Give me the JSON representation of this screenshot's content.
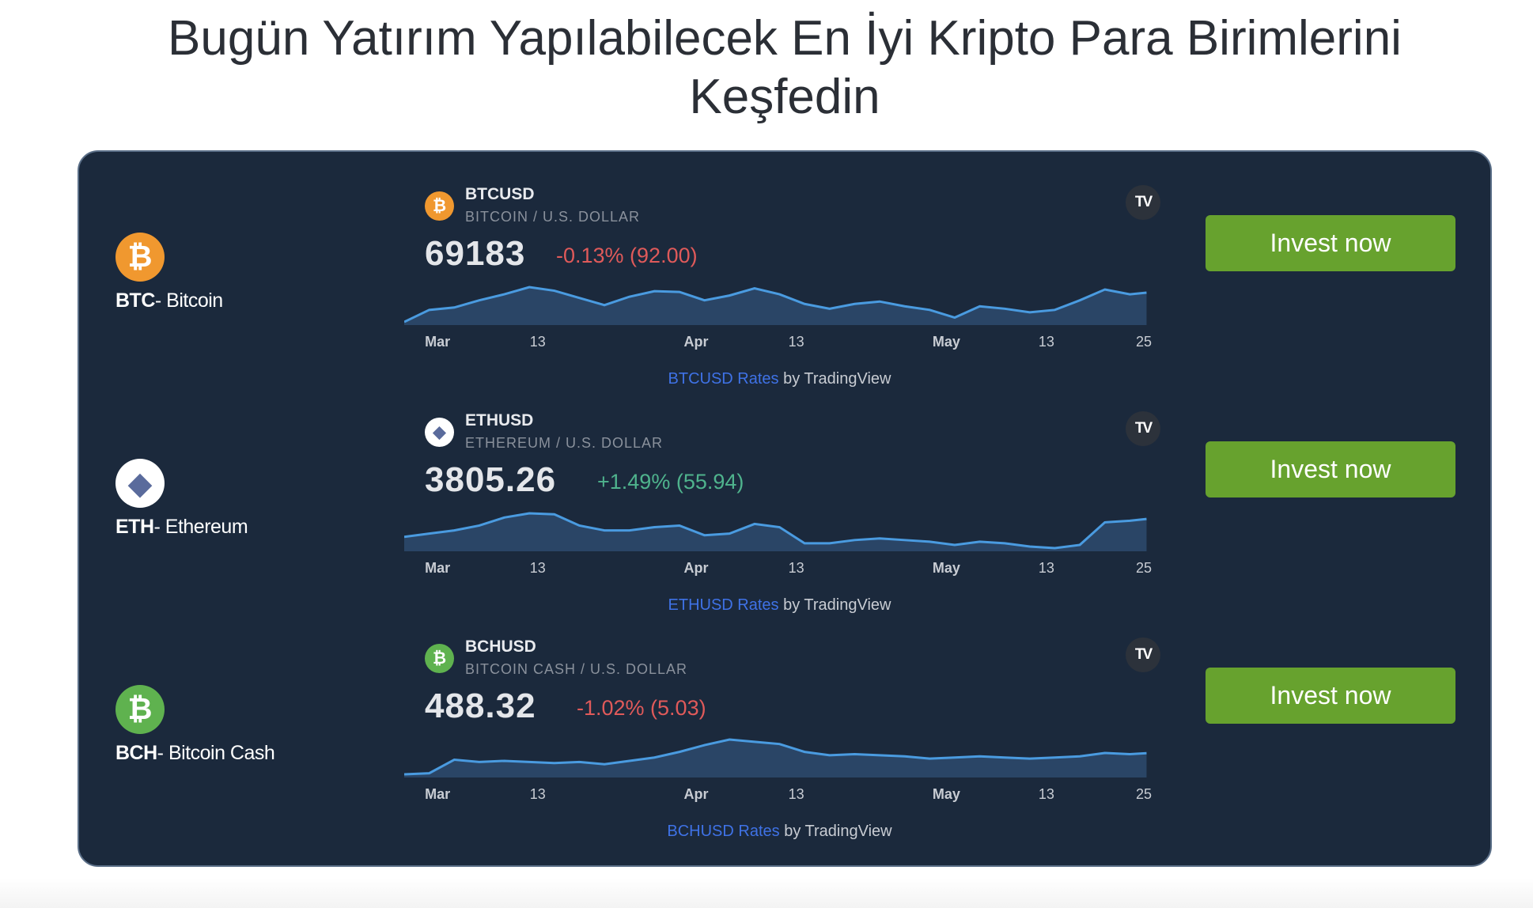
{
  "page": {
    "title_line1": "Bugün Yatırım Yapılabilecek En İyi Kripto Para Birimlerini",
    "title_line2": "Keşfedin"
  },
  "colors": {
    "panel_bg": "#1b293c",
    "button": "#67a22e",
    "negative": "#e05a5a",
    "positive": "#4fb38d",
    "line": "#4a9be0",
    "link": "#3f72e6"
  },
  "coins": [
    {
      "icon": "bitcoin-icon",
      "icon_color": "#f0982f",
      "glyph": "₿",
      "ticker": "BTC",
      "name": "- Bitcoin",
      "symbol": "BTCUSD",
      "description": "BITCOIN / U.S. DOLLAR",
      "price": "69183",
      "change": "-0.13% (92.00)",
      "direction": "down",
      "attr_link": "BTCUSD Rates",
      "attr_by": " by TradingView",
      "button": "Invest now"
    },
    {
      "icon": "ethereum-icon",
      "icon_color": "#ffffff",
      "glyph": "◆",
      "ticker": "ETH",
      "name": "- Ethereum",
      "symbol": "ETHUSD",
      "description": "ETHEREUM / U.S. DOLLAR",
      "price": "3805.26",
      "change": "+1.49% (55.94)",
      "direction": "up",
      "attr_link": "ETHUSD Rates",
      "attr_by": " by TradingView",
      "button": "Invest now"
    },
    {
      "icon": "bitcoin-cash-icon",
      "icon_color": "#5fb24f",
      "glyph": "₿",
      "ticker": "BCH",
      "name": "- Bitcoin Cash",
      "symbol": "BCHUSD",
      "description": "BITCOIN CASH / U.S. DOLLAR",
      "price": "488.32",
      "change": "-1.02% (5.03)",
      "direction": "down",
      "attr_link": "BCHUSD Rates",
      "attr_by": " by TradingView",
      "button": "Invest now"
    }
  ],
  "tradingview_logo": "TV",
  "chart_data": [
    {
      "type": "area",
      "series_of": "BTCUSD",
      "xlim": [
        "02-26",
        "05-26"
      ],
      "ticks": [
        {
          "label": "Mar",
          "date": "03-01",
          "month": true
        },
        {
          "label": "13",
          "date": "03-13"
        },
        {
          "label": "Apr",
          "date": "04-01",
          "month": true
        },
        {
          "label": "13",
          "date": "04-13"
        },
        {
          "label": "May",
          "date": "05-01",
          "month": true
        },
        {
          "label": "13",
          "date": "05-13"
        },
        {
          "label": "25",
          "date": "05-25"
        }
      ],
      "x": [
        "02-26",
        "02-29",
        "03-03",
        "03-06",
        "03-09",
        "03-12",
        "03-15",
        "03-18",
        "03-21",
        "03-24",
        "03-27",
        "03-30",
        "04-02",
        "04-05",
        "04-08",
        "04-11",
        "04-14",
        "04-17",
        "04-20",
        "04-23",
        "04-26",
        "04-29",
        "05-02",
        "05-05",
        "05-08",
        "05-11",
        "05-14",
        "05-17",
        "05-20",
        "05-23",
        "05-25"
      ],
      "values": [
        57000,
        62000,
        63000,
        66000,
        68500,
        71500,
        70000,
        67000,
        64000,
        67500,
        69800,
        69500,
        66000,
        68000,
        71000,
        68500,
        64500,
        62500,
        64500,
        65500,
        63500,
        62000,
        58800,
        63500,
        62500,
        61000,
        62000,
        66000,
        70500,
        68500,
        69183
      ]
    },
    {
      "type": "area",
      "series_of": "ETHUSD",
      "xlim": [
        "02-26",
        "05-26"
      ],
      "ticks": [
        {
          "label": "Mar",
          "date": "03-01",
          "month": true
        },
        {
          "label": "13",
          "date": "03-13"
        },
        {
          "label": "Apr",
          "date": "04-01",
          "month": true
        },
        {
          "label": "13",
          "date": "04-13"
        },
        {
          "label": "May",
          "date": "05-01",
          "month": true
        },
        {
          "label": "13",
          "date": "05-13"
        },
        {
          "label": "25",
          "date": "05-25"
        }
      ],
      "x": [
        "02-26",
        "02-29",
        "03-03",
        "03-06",
        "03-09",
        "03-12",
        "03-15",
        "03-18",
        "03-21",
        "03-24",
        "03-27",
        "03-30",
        "04-02",
        "04-05",
        "04-08",
        "04-11",
        "04-14",
        "04-17",
        "04-20",
        "04-23",
        "04-26",
        "04-29",
        "05-02",
        "05-05",
        "05-08",
        "05-11",
        "05-14",
        "05-17",
        "05-20",
        "05-23",
        "05-25"
      ],
      "values": [
        3250,
        3350,
        3450,
        3600,
        3850,
        3980,
        3950,
        3600,
        3450,
        3450,
        3550,
        3600,
        3300,
        3350,
        3650,
        3550,
        3050,
        3050,
        3150,
        3200,
        3150,
        3100,
        3000,
        3100,
        3050,
        2950,
        2900,
        3000,
        3700,
        3750,
        3805.26
      ]
    },
    {
      "type": "area",
      "series_of": "BCHUSD",
      "xlim": [
        "02-26",
        "05-26"
      ],
      "ticks": [
        {
          "label": "Mar",
          "date": "03-01",
          "month": true
        },
        {
          "label": "13",
          "date": "03-13"
        },
        {
          "label": "Apr",
          "date": "04-01",
          "month": true
        },
        {
          "label": "13",
          "date": "04-13"
        },
        {
          "label": "May",
          "date": "05-01",
          "month": true
        },
        {
          "label": "13",
          "date": "05-13"
        },
        {
          "label": "25",
          "date": "05-25"
        }
      ],
      "x": [
        "02-26",
        "02-29",
        "03-03",
        "03-06",
        "03-09",
        "03-12",
        "03-15",
        "03-18",
        "03-21",
        "03-24",
        "03-27",
        "03-30",
        "04-02",
        "04-05",
        "04-08",
        "04-11",
        "04-14",
        "04-17",
        "04-20",
        "04-23",
        "04-26",
        "04-29",
        "05-02",
        "05-05",
        "05-08",
        "05-11",
        "05-14",
        "05-17",
        "05-20",
        "05-23",
        "05-25"
      ],
      "values": [
        300,
        310,
        430,
        410,
        420,
        410,
        400,
        410,
        390,
        420,
        450,
        500,
        560,
        610,
        590,
        570,
        500,
        470,
        480,
        470,
        460,
        440,
        450,
        460,
        450,
        440,
        450,
        460,
        490,
        480,
        488.32
      ]
    }
  ]
}
